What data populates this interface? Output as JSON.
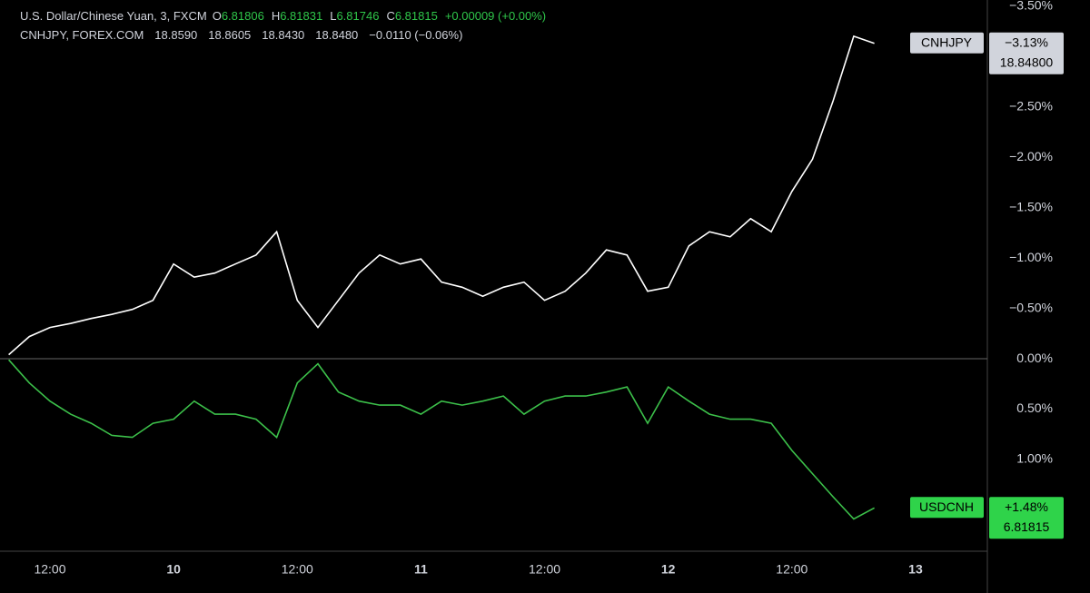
{
  "chart_data": {
    "type": "line",
    "header": {
      "primary": {
        "title": "U.S. Dollar/Chinese Yuan, 3, FXCM",
        "ohlc": [
          {
            "key": "O",
            "value": "6.81806"
          },
          {
            "key": "H",
            "value": "6.81831"
          },
          {
            "key": "L",
            "value": "6.81746"
          },
          {
            "key": "C",
            "value": "6.81815"
          }
        ],
        "change": "+0.00009 (+0.00%)"
      },
      "compare": {
        "title": "CNHJPY, FOREX.COM",
        "values": [
          "18.8590",
          "18.8605",
          "18.8430",
          "18.8480"
        ],
        "change": "−0.0110 (−0.06%)"
      }
    },
    "categories": [
      null,
      null,
      "12:00",
      null,
      null,
      null,
      null,
      null,
      "10",
      null,
      null,
      null,
      null,
      null,
      "12:00",
      null,
      null,
      null,
      null,
      null,
      "11",
      null,
      null,
      null,
      null,
      null,
      "12:00",
      null,
      null,
      null,
      null,
      null,
      "12",
      null,
      null,
      null,
      null,
      null,
      "12:00",
      null,
      null,
      null,
      null,
      null,
      "13"
    ],
    "series": [
      {
        "name": "CNHJPY",
        "color": "#ffffff",
        "tag_color": "#d1d4dc",
        "last_label": "−3.13%",
        "last_price": "18.84800",
        "values": [
          -0.04,
          -0.22,
          -0.31,
          -0.35,
          -0.4,
          -0.44,
          -0.49,
          -0.58,
          -0.94,
          -0.81,
          -0.85,
          -0.94,
          -1.03,
          -1.26,
          -0.58,
          -0.31,
          -0.58,
          -0.85,
          -1.03,
          -0.94,
          -0.99,
          -0.76,
          -0.71,
          -0.62,
          -0.71,
          -0.76,
          -0.58,
          -0.67,
          -0.85,
          -1.08,
          -1.03,
          -0.67,
          -0.71,
          -1.12,
          -1.26,
          -1.21,
          -1.39,
          -1.26,
          -1.66,
          -1.98,
          -2.56,
          -3.2,
          -3.13,
          null,
          null
        ]
      },
      {
        "name": "USDCNH",
        "color": "#3cc04a",
        "tag_color": "#2fd34a",
        "last_label": "+1.48%",
        "last_price": "6.81815",
        "values": [
          0.01,
          0.24,
          0.42,
          0.55,
          0.64,
          0.76,
          0.78,
          0.64,
          0.6,
          0.42,
          0.55,
          0.55,
          0.6,
          0.78,
          0.24,
          0.05,
          0.33,
          0.42,
          0.46,
          0.46,
          0.55,
          0.42,
          0.46,
          0.42,
          0.37,
          0.55,
          0.42,
          0.37,
          0.37,
          0.33,
          0.28,
          0.64,
          0.28,
          0.42,
          0.55,
          0.6,
          0.6,
          0.64,
          0.91,
          1.14,
          1.37,
          1.59,
          1.48,
          null,
          null
        ]
      }
    ],
    "ylim": [
      -3.56,
      1.91
    ],
    "invert_y": true,
    "yticks": [
      {
        "value": -3.5,
        "label": "−3.50%"
      },
      {
        "value": -2.5,
        "label": "−2.50%"
      },
      {
        "value": -2,
        "label": "−2.00%"
      },
      {
        "value": -1.5,
        "label": "−1.50%"
      },
      {
        "value": -1,
        "label": "−1.00%"
      },
      {
        "value": -0.5,
        "label": "−0.50%"
      },
      {
        "value": 0,
        "label": "0.00%"
      },
      {
        "value": 0.5,
        "label": "0.50%"
      },
      {
        "value": 1,
        "label": "1.00%"
      }
    ],
    "zero_line": true
  }
}
